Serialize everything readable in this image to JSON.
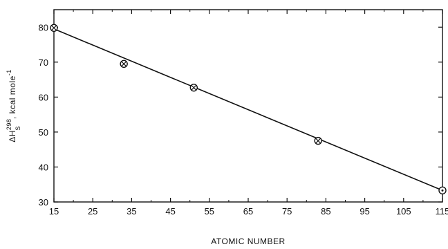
{
  "chart_data": {
    "type": "scatter",
    "xlabel": "ATOMIC NUMBER",
    "ylabel": {
      "base": "ΔH",
      "superscript": "298",
      "subscript": "S",
      "suffix": ", kcal mole",
      "suffix_sup": "-1"
    },
    "xlim": [
      15,
      115
    ],
    "ylim": [
      30,
      85
    ],
    "x_ticks": [
      15,
      25,
      35,
      45,
      55,
      65,
      75,
      85,
      95,
      105,
      115
    ],
    "y_ticks": [
      30,
      40,
      50,
      60,
      70,
      80
    ],
    "grid": false,
    "series": [
      {
        "points": [
          {
            "x": 15,
            "y": 79.8,
            "marker": "circle-x"
          },
          {
            "x": 33,
            "y": 69.5,
            "marker": "circle-x"
          },
          {
            "x": 51,
            "y": 62.7,
            "marker": "circle-x"
          },
          {
            "x": 83,
            "y": 47.5,
            "marker": "circle-x"
          },
          {
            "x": 115,
            "y": 33.3,
            "marker": "circle-dot"
          }
        ]
      }
    ],
    "fit_line": {
      "x": [
        15,
        115
      ],
      "y": [
        79.5,
        33.3
      ]
    }
  }
}
